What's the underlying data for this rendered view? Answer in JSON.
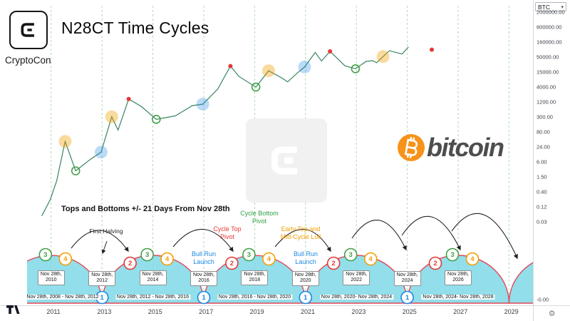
{
  "brand": {
    "name": "CryptoCon"
  },
  "title": "N28CT Time Cycles",
  "symbol_button": "BTC",
  "icons": {
    "caret_down": "▾",
    "gear": "⚙"
  },
  "bitcoin_logo": {
    "text": "bitcoin",
    "coin_color": "#f7931a",
    "text_color": "#4d4d4d"
  },
  "colors": {
    "cycle_fill": "#7fd8e6",
    "cycle_stroke": "#e0485a",
    "grid_green": "#4caf50",
    "price_line": "#2f7d5a",
    "stage_blue": "#1e88e5",
    "stage_red": "#e53935",
    "stage_green": "#43a047",
    "stage_orange": "#f59f00"
  },
  "axes": {
    "price_ticks": [
      "2000000.00",
      "600000.00",
      "160000.00",
      "50000.00",
      "15000.00",
      "4000.00",
      "1200.00",
      "300.00",
      "80.00",
      "24.00",
      "6.00",
      "1.50",
      "0.40",
      "0.12",
      "0.03"
    ],
    "zero_tick": "-0.00",
    "year_ticks": [
      "2011",
      "2013",
      "2015",
      "2017",
      "2019",
      "2021",
      "2023",
      "2025",
      "2027",
      "2029"
    ]
  },
  "annotations": {
    "tops_bottoms": "Tops and Bottoms +/- 21 Days From Nov 28th",
    "first_halving": "First Halving",
    "cycle_top": "Cycle Top Pivot",
    "cycle_bottom": "Cycle Bottom Pivot",
    "early_top": "Early Top and Mid-Cycle Lull",
    "bull_run": "Bull Run Launch"
  },
  "cycles": {
    "date_prefix": "Nov 28th,",
    "peak_years": [
      "2010",
      "2014",
      "2018",
      "2022",
      "2026"
    ],
    "trough_years": [
      "2012",
      "2016",
      "2020",
      "2024"
    ],
    "stages": [
      {
        "num": "1",
        "color": "#1e88e5"
      },
      {
        "num": "2",
        "color": "#e53935"
      },
      {
        "num": "3",
        "color": "#43a047"
      },
      {
        "num": "4",
        "color": "#f59f00"
      }
    ],
    "range_labels": [
      "Nov 28th, 2008 - Nov 28th, 2012",
      "Nov 28th, 2012 - Nov 28th, 2016",
      "Nov 28th, 2016 - Nov 28th, 2020",
      "Nov 28th, 2020- Nov 28th, 2024",
      "Nov 28th, 2024- Nov 28th, 2028"
    ]
  },
  "chart_data": {
    "type": "line",
    "symbol": "BTC",
    "title": "N28CT Time Cycles",
    "y_scale": "log",
    "y_ticks": [
      0.03,
      0.12,
      0.4,
      1.5,
      6,
      24,
      80,
      300,
      1200,
      4000,
      15000,
      50000,
      160000,
      600000,
      2000000
    ],
    "x_tick_years": [
      2011,
      2013,
      2015,
      2017,
      2019,
      2021,
      2023,
      2025,
      2027,
      2029
    ],
    "gridline_years_nov28": [
      2010,
      2012,
      2014,
      2016,
      2018,
      2020,
      2022,
      2024,
      2026,
      2028
    ],
    "cycle_start_years_nov28": [
      2008,
      2012,
      2016,
      2020,
      2024,
      2028
    ],
    "series": [
      {
        "name": "BTC price",
        "points": [
          [
            "2010-07",
            0.05
          ],
          [
            "2010-11",
            0.2
          ],
          [
            "2011-02",
            1.0
          ],
          [
            "2011-06",
            30
          ],
          [
            "2011-11",
            2.4
          ],
          [
            "2012-06",
            6.5
          ],
          [
            "2012-11",
            12
          ],
          [
            "2013-04",
            250
          ],
          [
            "2013-07",
            80
          ],
          [
            "2013-12",
            1150
          ],
          [
            "2014-06",
            600
          ],
          [
            "2015-01",
            200
          ],
          [
            "2015-10",
            270
          ],
          [
            "2016-06",
            650
          ],
          [
            "2016-11",
            740
          ],
          [
            "2017-06",
            2700
          ],
          [
            "2017-12",
            19500
          ],
          [
            "2018-04",
            8000
          ],
          [
            "2018-12",
            3200
          ],
          [
            "2019-06",
            13000
          ],
          [
            "2019-12",
            7200
          ],
          [
            "2020-03",
            5000
          ],
          [
            "2020-08",
            11500
          ],
          [
            "2020-11",
            18000
          ],
          [
            "2021-04",
            63000
          ],
          [
            "2021-07",
            30000
          ],
          [
            "2021-11",
            69000
          ],
          [
            "2022-06",
            20000
          ],
          [
            "2022-11",
            15500
          ],
          [
            "2023-04",
            29000
          ],
          [
            "2023-07",
            31000
          ],
          [
            "2023-09",
            26000
          ],
          [
            "2023-12",
            44000
          ],
          [
            "2024-03",
            73000
          ],
          [
            "2024-09",
            55000
          ],
          [
            "2024-12",
            100000
          ]
        ]
      }
    ],
    "markers": [
      {
        "style": "halo_yellow",
        "meaning_label": "Early Top and Mid-Cycle Lull",
        "points": [
          [
            "2011-06",
            30
          ],
          [
            "2013-04",
            250
          ],
          [
            "2019-06",
            13000
          ],
          [
            "2023-12",
            44000
          ]
        ]
      },
      {
        "style": "halo_blue",
        "meaning_label": "Bull Run Launch",
        "points": [
          [
            "2012-11",
            12
          ],
          [
            "2016-11",
            740
          ],
          [
            "2020-11",
            18000
          ]
        ]
      },
      {
        "style": "ring_green",
        "meaning_label": "Cycle Bottom Pivot",
        "points": [
          [
            "2011-11",
            2.4
          ],
          [
            "2015-01",
            200
          ],
          [
            "2018-12",
            3200
          ],
          [
            "2022-11",
            15500
          ]
        ]
      },
      {
        "style": "dot_red",
        "meaning_label": "Cycle Top Pivot",
        "points": [
          [
            "2013-12",
            1150
          ],
          [
            "2017-12",
            19500
          ],
          [
            "2021-11",
            69000
          ],
          [
            "2025-11",
            80000
          ]
        ]
      }
    ]
  }
}
